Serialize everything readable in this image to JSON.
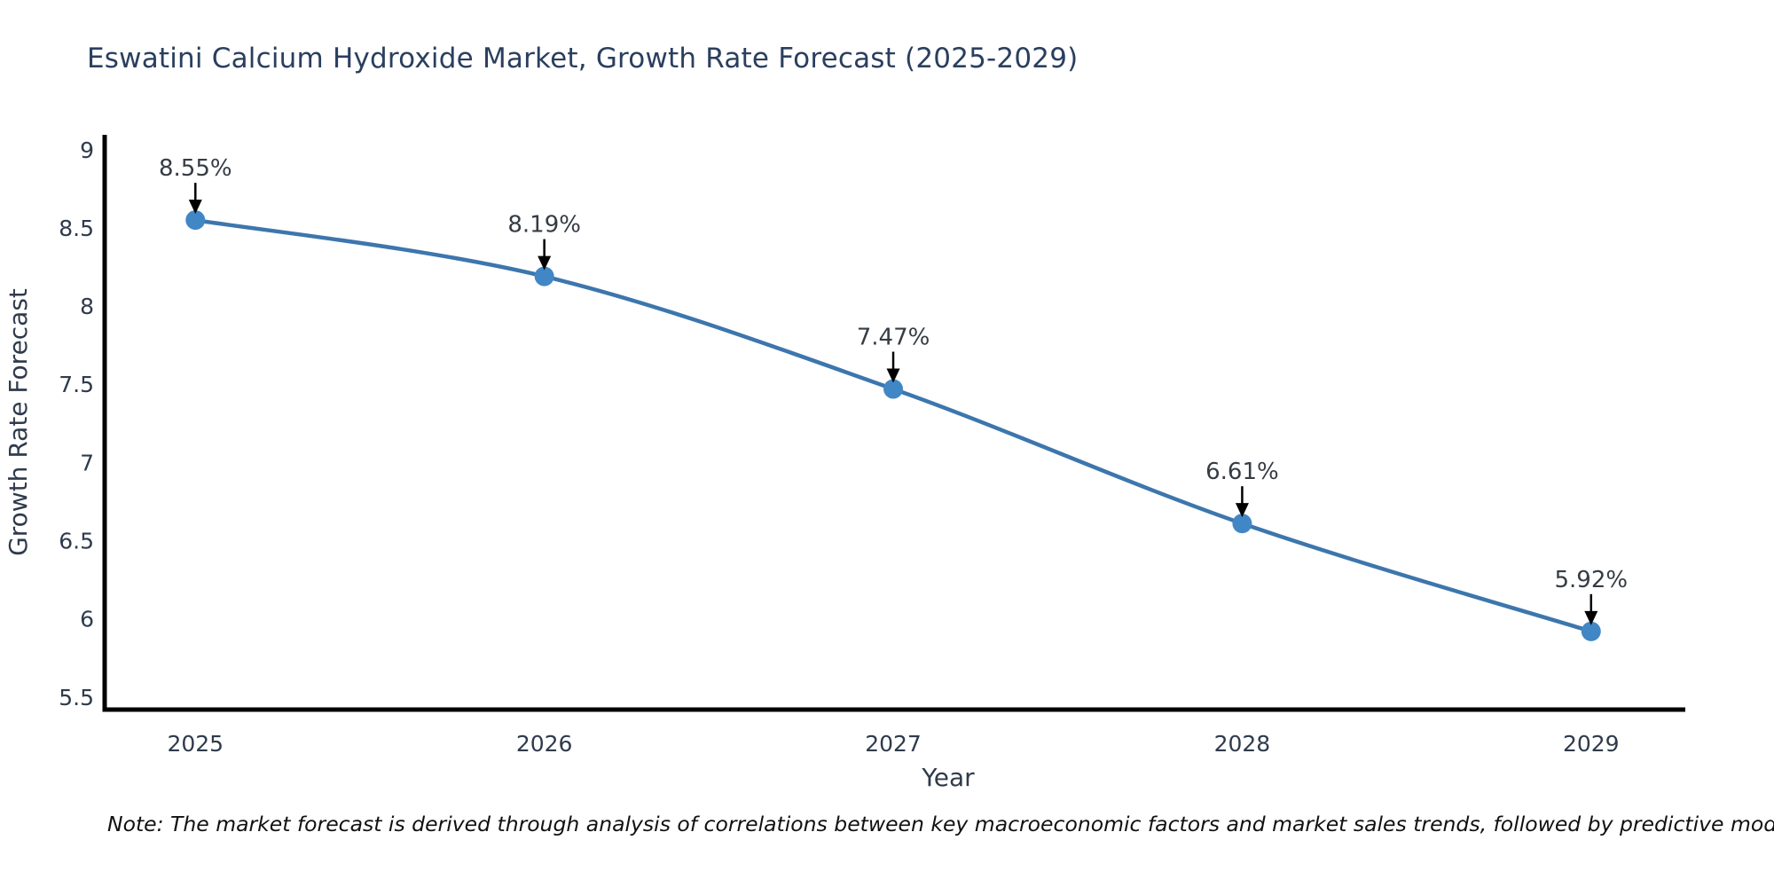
{
  "header": {
    "title": "Eswatini Calcium Hydroxide Market, Growth Rate Forecast (2025-2029)"
  },
  "note": "Note: The market forecast is derived through analysis of correlations between key macroeconomic factors and market sales trends, followed by predictive modeling to project future sales",
  "chart_data": {
    "type": "line",
    "title": "Eswatini Calcium Hydroxide Market, Growth Rate Forecast (2025-2029)",
    "xlabel": "Year",
    "ylabel": "Growth Rate Forecast",
    "x": [
      2025,
      2026,
      2027,
      2028,
      2029
    ],
    "series": [
      {
        "name": "Growth Rate Forecast",
        "values": [
          8.55,
          8.19,
          7.47,
          6.61,
          5.92
        ]
      }
    ],
    "point_labels": [
      "8.55%",
      "8.19%",
      "7.47%",
      "6.61%",
      "5.92%"
    ],
    "xticks": [
      2025,
      2026,
      2027,
      2028,
      2029
    ],
    "xtick_labels": [
      "2025",
      "2026",
      "2027",
      "2028",
      "2029"
    ],
    "yticks": [
      5.5,
      6,
      6.5,
      7,
      7.5,
      8,
      8.5,
      9
    ],
    "ytick_labels": [
      "5.5",
      "6",
      "6.5",
      "7",
      "7.5",
      "8",
      "8.5",
      "9"
    ],
    "xlim": [
      2024.74,
      2029.27
    ],
    "ylim": [
      5.42,
      9.095
    ],
    "grid": false,
    "legend_position": "none",
    "colors": {
      "line": "#3d76ad",
      "marker": "#4287c5",
      "axis": "#000000",
      "arrow": "#000000",
      "title_text": "#2a3f5f",
      "tick_text": "#2f3b4c",
      "axis_label_text": "#2f3b4c",
      "annotation_text": "#363c44",
      "note_text": "#111111",
      "background": "#ffffff"
    }
  }
}
